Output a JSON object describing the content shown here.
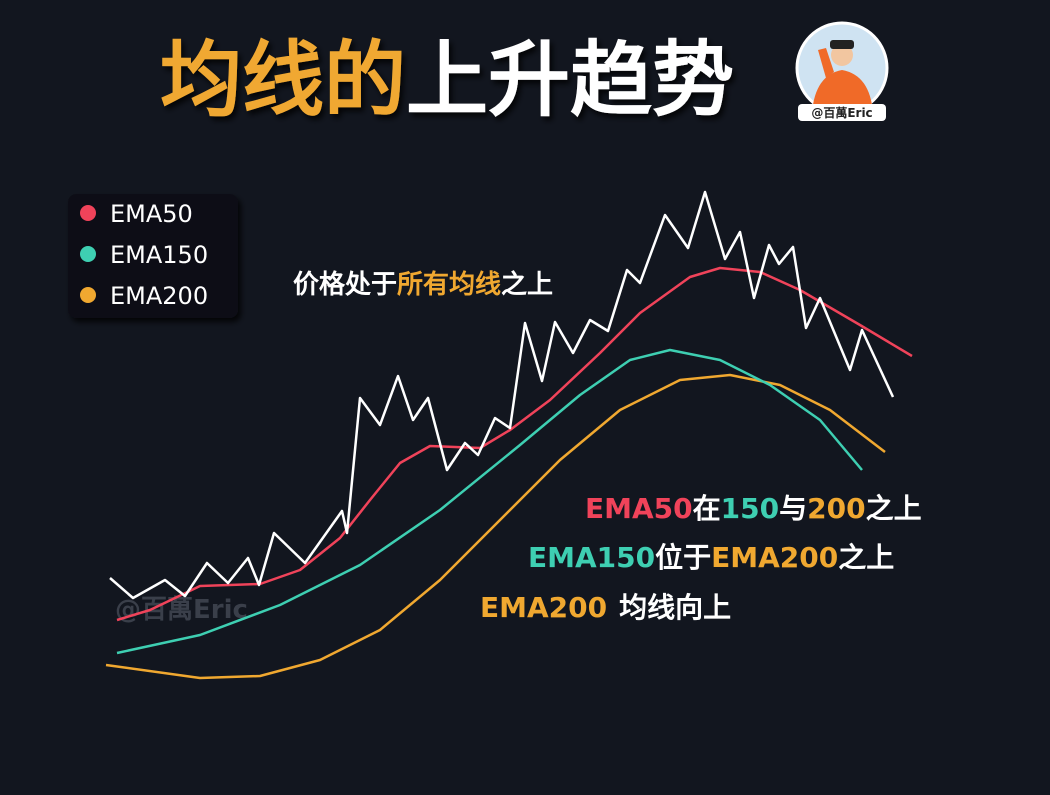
{
  "header": {
    "title_highlight": "均线的",
    "title_rest": "上升趋势",
    "badge": "@百萬Eric"
  },
  "legend": [
    "EMA50",
    "EMA150",
    "EMA200"
  ],
  "annotations": {
    "price": [
      "价格处于",
      "所有均线",
      "之上"
    ],
    "ema50": [
      "EMA50",
      "在",
      "150",
      "与",
      "200",
      "之上"
    ],
    "ema150": [
      "EMA150",
      "位于",
      "EMA200",
      "之上"
    ],
    "ema200": [
      "EMA200",
      "均线向上"
    ]
  },
  "watermark": "@百萬Eric"
}
